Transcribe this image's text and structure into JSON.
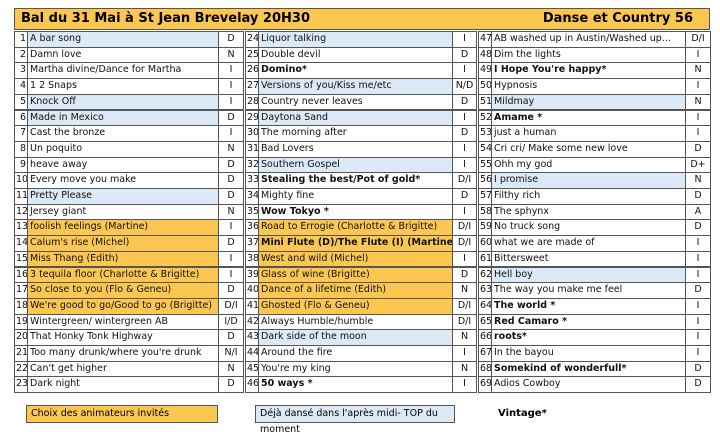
{
  "header": {
    "title": "Bal du 31 Mai à St Jean Brevelay  20H30",
    "right": "Danse et Country 56"
  },
  "columns": [
    {
      "rows": [
        {
          "n": 1,
          "title": "A bar song",
          "level": "D",
          "hl": "blue"
        },
        {
          "n": 2,
          "title": "Damn love",
          "level": "N"
        },
        {
          "n": 3,
          "title": "Martha divine/Dance for Martha",
          "level": "I"
        },
        {
          "n": 4,
          "title": "1 2 Snaps",
          "level": "I"
        },
        {
          "n": 5,
          "title": "Knock Off",
          "level": "I",
          "hl": "blue"
        },
        {
          "n": 6,
          "title": "Made in Mexico",
          "level": "D",
          "hl": "blue"
        },
        {
          "n": 7,
          "title": "Cast the bronze",
          "level": "I"
        },
        {
          "n": 8,
          "title": "Un poquito",
          "level": "N"
        },
        {
          "n": 9,
          "title": "heave away",
          "level": "D"
        },
        {
          "n": 10,
          "title": "Every move you make",
          "level": "D"
        },
        {
          "n": 11,
          "title": "Pretty Please",
          "level": "D",
          "hl": "blue"
        },
        {
          "n": 12,
          "title": "Jersey giant",
          "level": "N"
        },
        {
          "n": 13,
          "title": "foolish feelings  (Martine)",
          "level": "I",
          "hl": "orange"
        },
        {
          "n": 14,
          "title": "Calum's rise (Michel)",
          "level": "D",
          "hl": "orange"
        },
        {
          "n": 15,
          "title": "Miss Thang  (Edith)",
          "level": "I",
          "hl": "orange"
        },
        {
          "n": 16,
          "title": "3 tequila floor (Charlotte & Brigitte)",
          "level": "I",
          "hl": "orange"
        },
        {
          "n": 17,
          "title": "So close to you (Flo & Geneu)",
          "level": "D",
          "hl": "orange"
        },
        {
          "n": 18,
          "title": "We're good to go/Good to go (Brigitte)",
          "level": "D/I",
          "hl": "orange"
        },
        {
          "n": 19,
          "title": "Wintergreen/ wintergreen AB",
          "level": "I/D"
        },
        {
          "n": 20,
          "title": "That Honky Tonk Highway",
          "level": "D"
        },
        {
          "n": 21,
          "title": "Too many drunk/where you're drunk",
          "level": "N/I"
        },
        {
          "n": 22,
          "title": "Can't get higher",
          "level": "N"
        },
        {
          "n": 23,
          "title": "Dark night",
          "level": "D"
        }
      ]
    },
    {
      "rows": [
        {
          "n": 24,
          "title": "Liquor talking",
          "level": "I",
          "hl": "blue"
        },
        {
          "n": 25,
          "title": "Double devil",
          "level": "D"
        },
        {
          "n": 26,
          "title": "Domino*",
          "level": "I",
          "bold": true
        },
        {
          "n": 27,
          "title": "Versions of you/Kiss me/etc",
          "level": "N/D",
          "hl": "blue"
        },
        {
          "n": 28,
          "title": "Country never leaves",
          "level": "D"
        },
        {
          "n": 29,
          "title": "Daytona Sand",
          "level": "I",
          "hl": "blue"
        },
        {
          "n": 30,
          "title": "The morning after",
          "level": "D"
        },
        {
          "n": 31,
          "title": "Bad Lovers",
          "level": "I"
        },
        {
          "n": 32,
          "title": "Southern Gospel",
          "level": "I",
          "hl": "blue"
        },
        {
          "n": 33,
          "title": "Stealing the best/Pot of gold*",
          "level": "D/I",
          "bold": true
        },
        {
          "n": 34,
          "title": "Mighty fine",
          "level": "D"
        },
        {
          "n": 35,
          "title": "Wow Tokyo  *",
          "level": "I",
          "bold": true
        },
        {
          "n": 36,
          "title": "Road to Errogie (Charlotte & Brigitte)",
          "level": "D/I",
          "hl": "orange"
        },
        {
          "n": 37,
          "title": "Mini Flute (D)/The Flute (I) (Martine)*",
          "level": "D/I",
          "hl": "orange",
          "bold": true
        },
        {
          "n": 38,
          "title": "West and wild (Michel)",
          "level": "I",
          "hl": "orange"
        },
        {
          "n": 39,
          "title": "Glass of wine  (Brigitte)",
          "level": "D",
          "hl": "orange"
        },
        {
          "n": 40,
          "title": "Dance of a lifetime (Edith)",
          "level": "N",
          "hl": "orange"
        },
        {
          "n": 41,
          "title": "Ghosted (Flo & Geneu)",
          "level": "D/I",
          "hl": "orange"
        },
        {
          "n": 42,
          "title": "Always Humble/humble",
          "level": "D/I"
        },
        {
          "n": 43,
          "title": "Dark side of the moon",
          "level": "N",
          "hl": "blue"
        },
        {
          "n": 44,
          "title": "Around the fire",
          "level": "I"
        },
        {
          "n": 45,
          "title": "You're my king",
          "level": "N"
        },
        {
          "n": 46,
          "title": "50 ways  *",
          "level": "I",
          "bold": true
        }
      ]
    },
    {
      "rows": [
        {
          "n": 47,
          "title": "AB washed up in Austin/Washed up...",
          "level": "D/I"
        },
        {
          "n": 48,
          "title": "Dim the lights",
          "level": "I"
        },
        {
          "n": 49,
          "title": "I Hope You're happy*",
          "level": "N",
          "bold": true
        },
        {
          "n": 50,
          "title": "Hypnosis",
          "level": "I"
        },
        {
          "n": 51,
          "title": "Mildmay",
          "level": "N",
          "hl": "blue"
        },
        {
          "n": 52,
          "title": "Amame  *",
          "level": "I",
          "bold": true
        },
        {
          "n": 53,
          "title": "just a human",
          "level": "I"
        },
        {
          "n": 54,
          "title": "Cri cri/ Make some new love",
          "level": "D"
        },
        {
          "n": 55,
          "title": "Ohh my god",
          "level": "D+"
        },
        {
          "n": 56,
          "title": "I promise",
          "level": "N",
          "hl": "blue"
        },
        {
          "n": 57,
          "title": "Filthy rich",
          "level": "D"
        },
        {
          "n": 58,
          "title": "The sphynx",
          "level": "A"
        },
        {
          "n": 59,
          "title": "No truck song",
          "level": "D"
        },
        {
          "n": 60,
          "title": "what we are made of",
          "level": "I"
        },
        {
          "n": 61,
          "title": "Bittersweet",
          "level": "I"
        },
        {
          "n": 62,
          "title": "Hell boy",
          "level": "I",
          "hl": "blue"
        },
        {
          "n": 63,
          "title": "The way you make me feel",
          "level": "D"
        },
        {
          "n": 64,
          "title": "The world *",
          "level": "I",
          "bold": true
        },
        {
          "n": 65,
          "title": "Red Camaro  *",
          "level": "I",
          "bold": true
        },
        {
          "n": 66,
          "title": "roots*",
          "level": "I",
          "bold": true
        },
        {
          "n": 67,
          "title": "In the bayou",
          "level": "I"
        },
        {
          "n": 68,
          "title": "Somekind of wonderfull*",
          "level": "D",
          "bold": true
        },
        {
          "n": 69,
          "title": "Adios Cowboy",
          "level": "D"
        }
      ]
    }
  ],
  "legend": {
    "orange": "Choix des animateurs invités",
    "blue": "Déjà dansé dans l'après midi- TOP du moment",
    "bold": "Vintage*"
  }
}
